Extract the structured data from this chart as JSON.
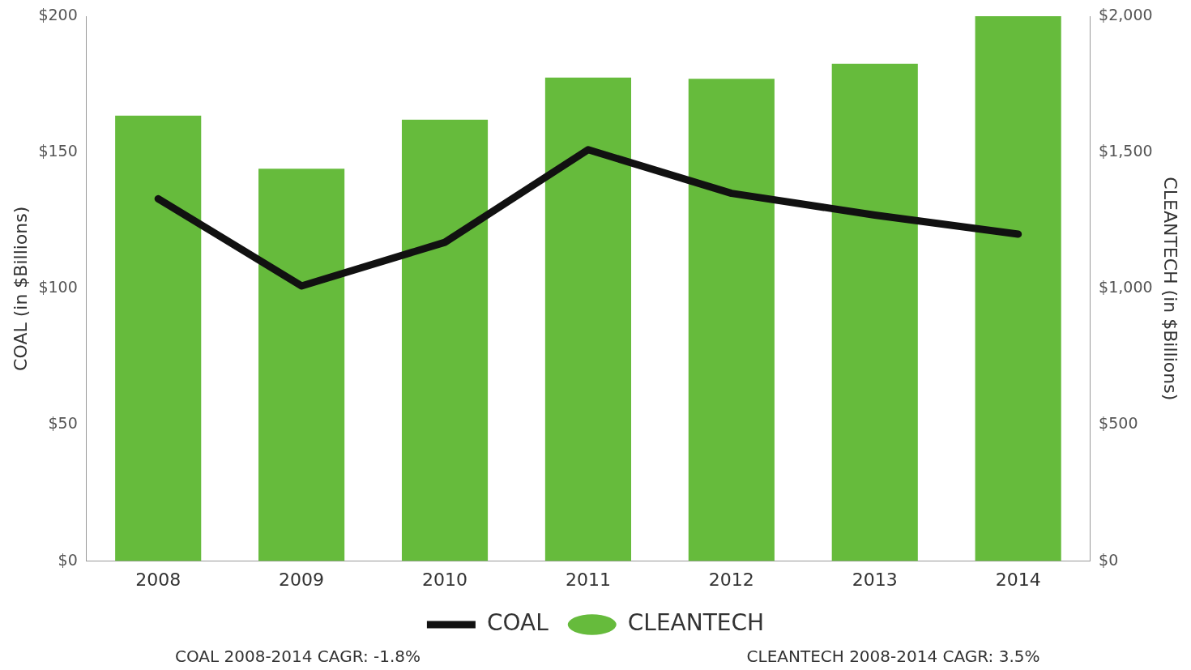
{
  "chart_data": {
    "type": "bar",
    "categories": [
      "2008",
      "2009",
      "2010",
      "2011",
      "2012",
      "2013",
      "2014"
    ],
    "ylabel": "COAL (in $Billions)",
    "y2label": "CLEANTECH (in $Billions)",
    "ylim": [
      0,
      200
    ],
    "yticks": [
      {
        "value": 0,
        "label": "$0"
      },
      {
        "value": 50,
        "label": "$50"
      },
      {
        "value": 100,
        "label": "$100"
      },
      {
        "value": 150,
        "label": "$150"
      },
      {
        "value": 200,
        "label": "$200"
      }
    ],
    "y2lim": [
      0,
      2000
    ],
    "y2ticks": [
      {
        "value": 0,
        "label": "$0"
      },
      {
        "value": 500,
        "label": "$500"
      },
      {
        "value": 1000,
        "label": "$1,000"
      },
      {
        "value": 1500,
        "label": "$1,500"
      },
      {
        "value": 2000,
        "label": "$2,000"
      }
    ],
    "series": [
      {
        "name": "COAL",
        "type": "line",
        "color": "#111111",
        "values": [
          133,
          101,
          117,
          151,
          135,
          127,
          120
        ]
      },
      {
        "name": "CLEANTECH",
        "axis": "y2",
        "color": "#66bb3c",
        "values": [
          1635,
          1440,
          1620,
          1775,
          1770,
          1825,
          2000
        ]
      }
    ],
    "legend": "bottom",
    "grid": false,
    "annotations": [
      "COAL 2008-2014 CAGR: -1.8%",
      "CLEANTECH 2008-2014 CAGR: 3.5%"
    ]
  }
}
